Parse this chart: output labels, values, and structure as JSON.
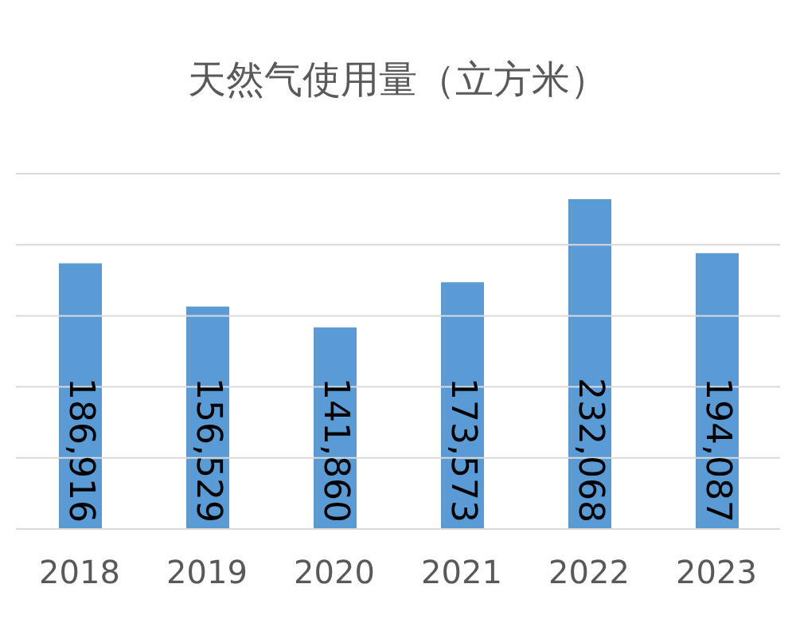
{
  "chart_data": {
    "type": "bar",
    "title": "天然气使用量（立方米）",
    "categories": [
      "2018",
      "2019",
      "2020",
      "2021",
      "2022",
      "2023"
    ],
    "values": [
      186916,
      156529,
      141860,
      173573,
      232068,
      194087
    ],
    "value_labels": [
      "186,916",
      "156,529",
      "141,860",
      "173,573",
      "232,068",
      "194,087"
    ],
    "color": "#5b9bd5",
    "ylim": [
      0,
      250000
    ],
    "yticks": [
      {
        "value": 0,
        "label": null
      },
      {
        "value": 50000,
        "label": null
      },
      {
        "value": 100000,
        "label": null
      },
      {
        "value": 150000,
        "label": null
      },
      {
        "value": 200000,
        "label": null
      },
      {
        "value": 250000,
        "label": null
      }
    ],
    "tick_labels": "x",
    "grid": "y",
    "legend": false
  }
}
